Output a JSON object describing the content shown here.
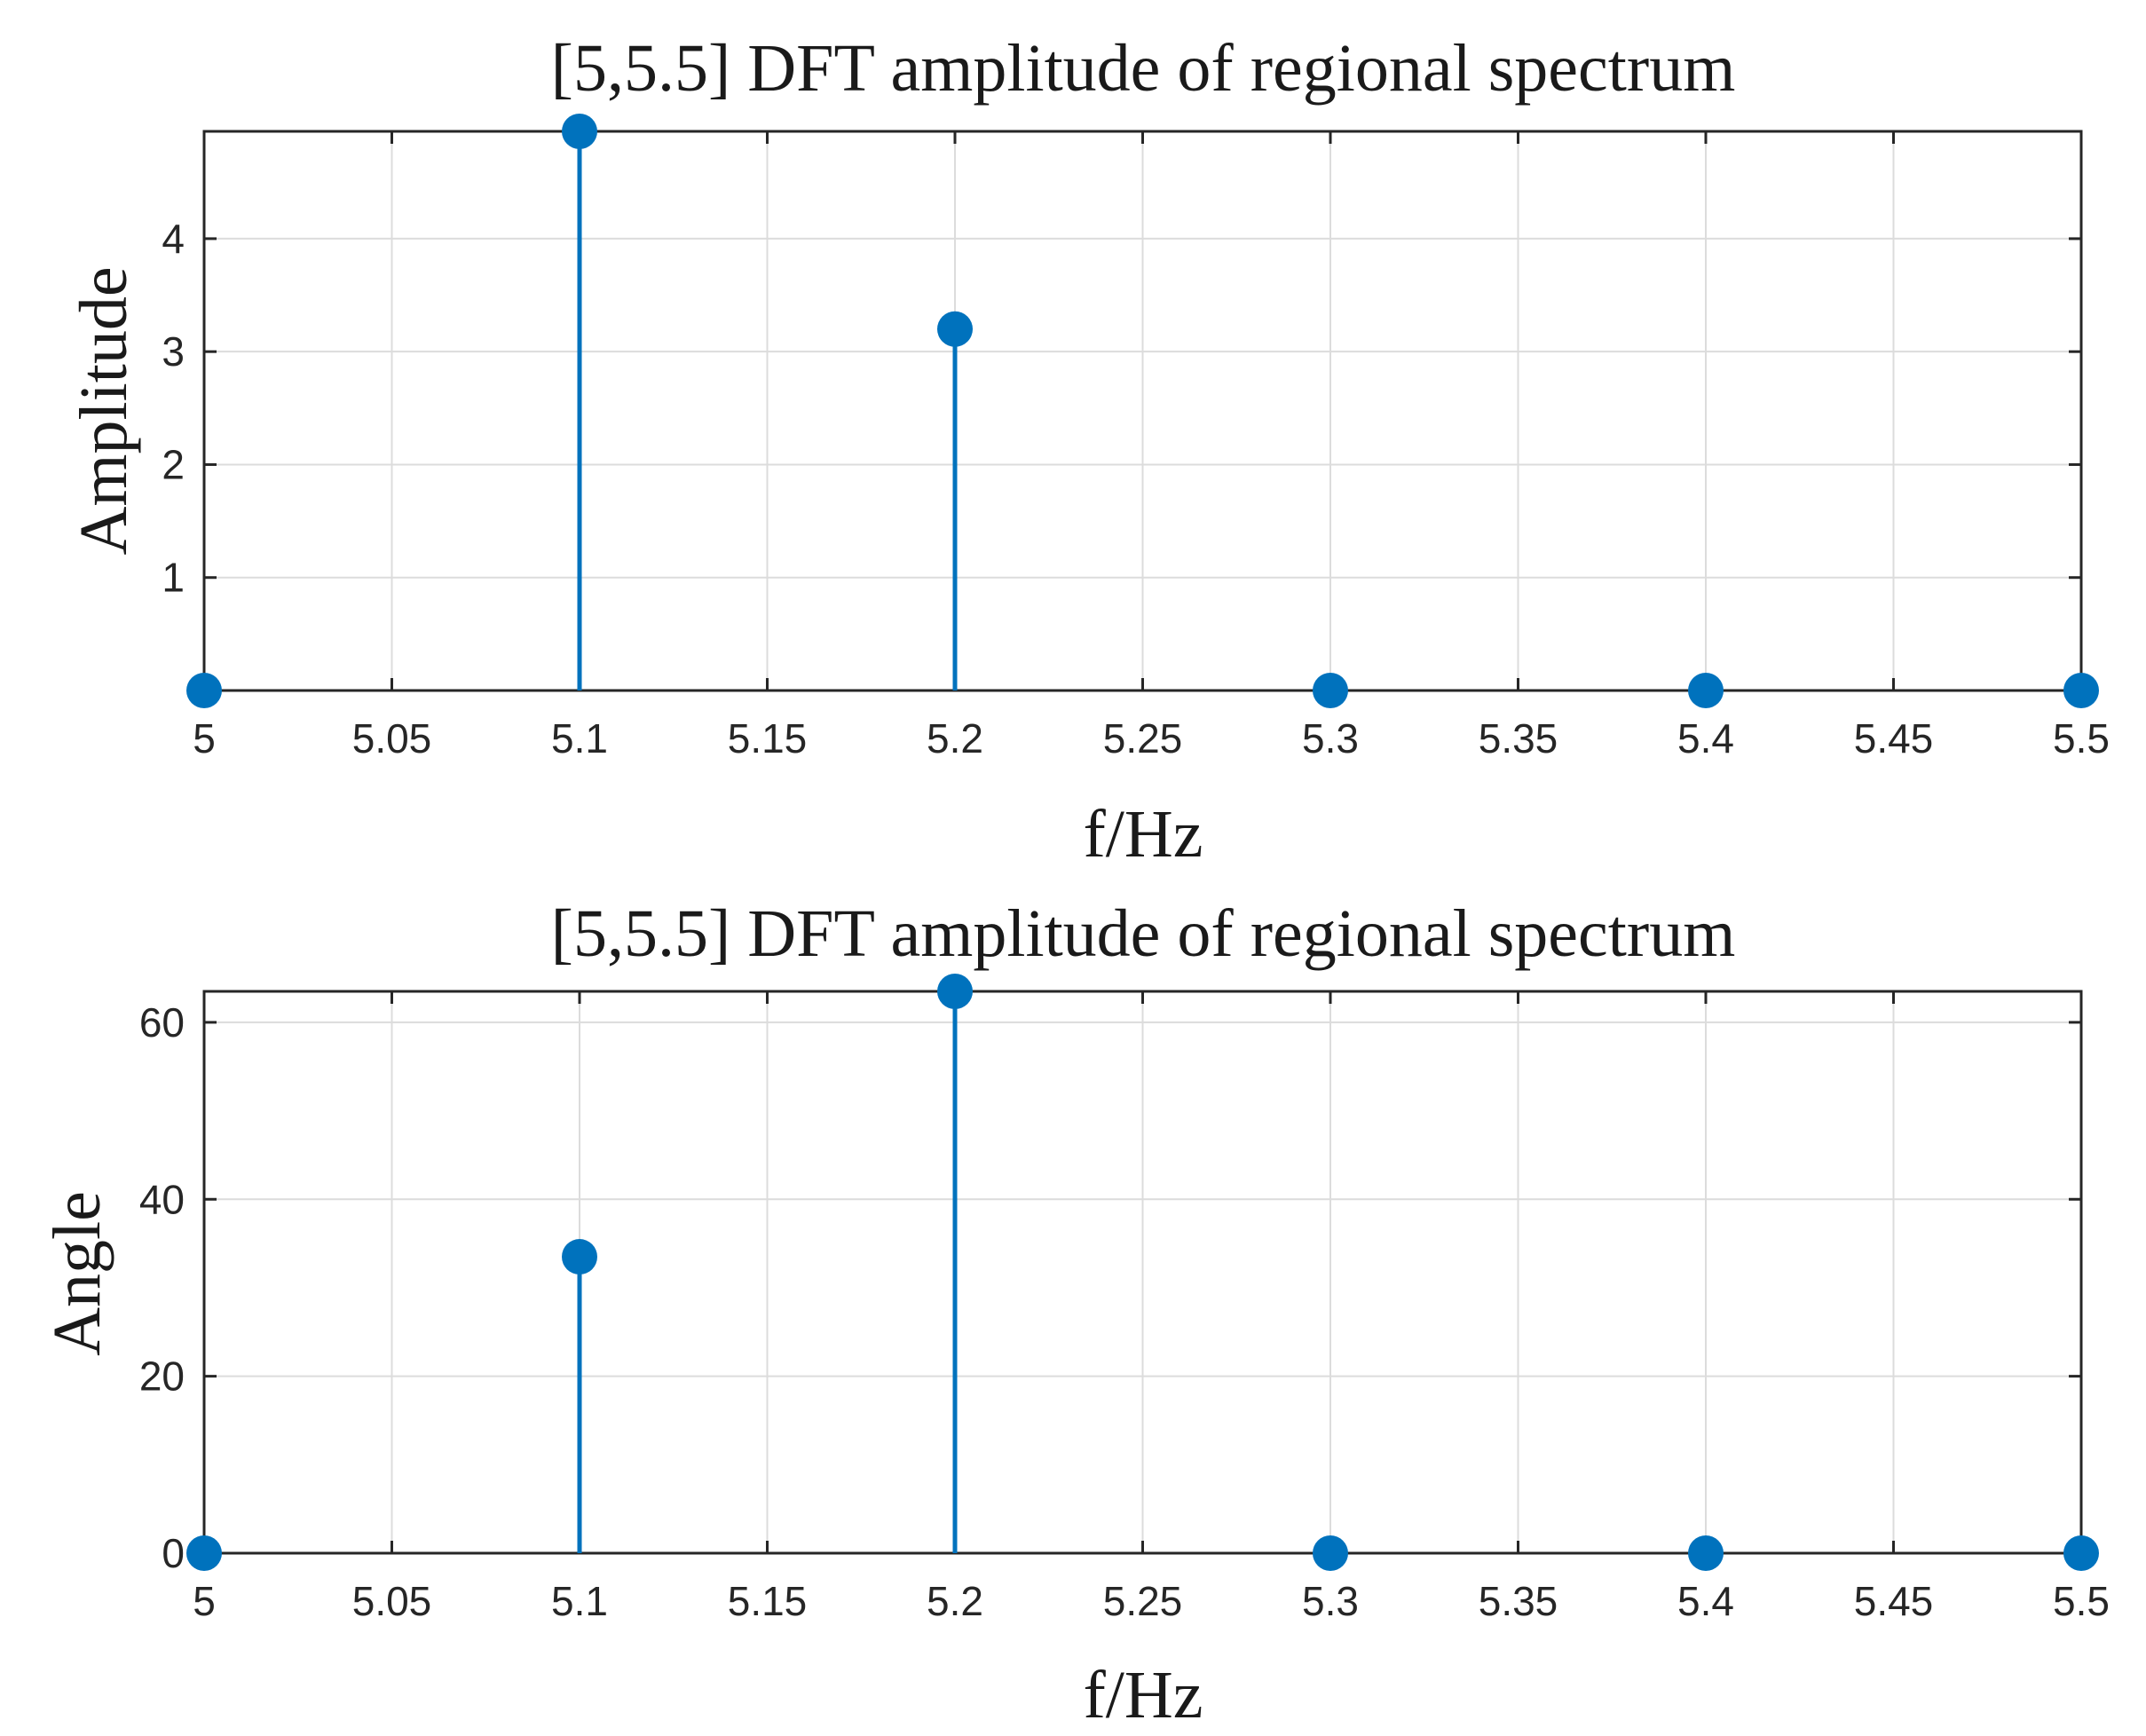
{
  "chart_data": [
    {
      "type": "stem",
      "title": "[5,5.5] DFT amplitude of regional spectrum",
      "xlabel": "f/Hz",
      "ylabel": "Amplitude",
      "xlim": [
        5,
        5.5
      ],
      "ylim": [
        0,
        4.95
      ],
      "grid": true,
      "xticks": [
        5,
        5.05,
        5.1,
        5.15,
        5.2,
        5.25,
        5.3,
        5.35,
        5.4,
        5.45,
        5.5
      ],
      "xtick_labels": [
        "5",
        "5.05",
        "5.1",
        "5.15",
        "5.2",
        "5.25",
        "5.3",
        "5.35",
        "5.4",
        "5.45",
        "5.5"
      ],
      "yticks": [
        1,
        2,
        3,
        4
      ],
      "ytick_labels": [
        "1",
        "2",
        "3",
        "4"
      ],
      "x": [
        5,
        5.1,
        5.2,
        5.3,
        5.4,
        5.5
      ],
      "values": [
        0,
        4.95,
        3.2,
        0,
        0,
        0
      ],
      "color": "#0072bd"
    },
    {
      "type": "stem",
      "title": "[5,5.5] DFT amplitude of regional spectrum",
      "xlabel": "f/Hz",
      "ylabel": "Angle",
      "xlim": [
        5,
        5.5
      ],
      "ylim": [
        0,
        63.5
      ],
      "grid": true,
      "xticks": [
        5,
        5.05,
        5.1,
        5.15,
        5.2,
        5.25,
        5.3,
        5.35,
        5.4,
        5.45,
        5.5
      ],
      "xtick_labels": [
        "5",
        "5.05",
        "5.1",
        "5.15",
        "5.2",
        "5.25",
        "5.3",
        "5.35",
        "5.4",
        "5.45",
        "5.5"
      ],
      "yticks": [
        0,
        20,
        40,
        60
      ],
      "ytick_labels": [
        "0",
        "20",
        "40",
        "60"
      ],
      "x": [
        5,
        5.1,
        5.2,
        5.3,
        5.4,
        5.5
      ],
      "values": [
        0,
        33.5,
        63.5,
        0,
        0,
        0
      ],
      "color": "#0072bd"
    }
  ]
}
